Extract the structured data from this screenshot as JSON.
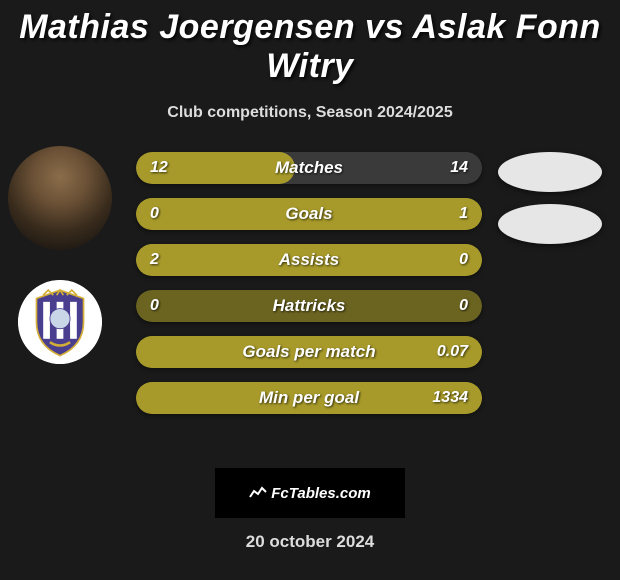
{
  "title": "Mathias Joergensen vs Aslak Fonn Witry",
  "subtitle": "Club competitions, Season 2024/2025",
  "date": "20 october 2024",
  "watermark": "FcTables.com",
  "colors": {
    "olive": "#a79a2a",
    "olive_dark": "#6b6420",
    "track": "#3a3a3a",
    "badge": "#e6e6e6",
    "bg": "#1a1a1a"
  },
  "bars": [
    {
      "label": "Matches",
      "left": "12",
      "right": "14",
      "left_pct": 46,
      "right_pct": 54,
      "left_is_olive": true
    },
    {
      "label": "Goals",
      "left": "0",
      "right": "1",
      "left_pct": 0,
      "right_pct": 100,
      "left_is_olive": false
    },
    {
      "label": "Assists",
      "left": "2",
      "right": "0",
      "left_pct": 100,
      "right_pct": 0,
      "left_is_olive": true
    },
    {
      "label": "Hattricks",
      "left": "0",
      "right": "0",
      "left_pct": 0,
      "right_pct": 0,
      "left_is_olive": false
    },
    {
      "label": "Goals per match",
      "left": "",
      "right": "0.07",
      "left_pct": 0,
      "right_pct": 100,
      "left_is_olive": false
    },
    {
      "label": "Min per goal",
      "left": "",
      "right": "1334",
      "left_pct": 0,
      "right_pct": 100,
      "left_is_olive": false
    }
  ]
}
